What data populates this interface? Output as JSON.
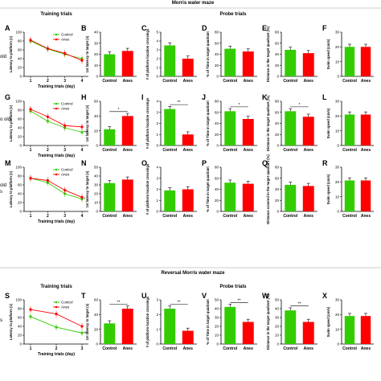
{
  "headers": {
    "top_title": "Morris water maze",
    "training_title": "Training trials",
    "probe_title": "Probe trials",
    "reversal_title": "Reversal Morris water maze",
    "reversal_training_title": "Training trials",
    "reversal_probe_title": "Probe trials"
  },
  "row_labels": [
    "old",
    "o old",
    "old\ns",
    "s"
  ],
  "colors": {
    "control": "#33cc00",
    "anes": "#ff0000",
    "axis": "#000000"
  },
  "chart_data": [
    {
      "id": "A",
      "type": "line",
      "row": 0,
      "col": 0,
      "xlabel": "Training trials (day)",
      "ylabel": "Latency to platform (s)",
      "x": [
        1,
        2,
        3,
        4
      ],
      "xticks": [
        "1",
        "2",
        "3",
        "4"
      ],
      "ylim": [
        0,
        100
      ],
      "yticks": [
        0,
        20,
        40,
        60,
        80,
        100
      ],
      "legend": [
        "Control",
        "Anes"
      ],
      "series": [
        {
          "name": "Control",
          "values": [
            80,
            62,
            50,
            40
          ]
        },
        {
          "name": "Anes",
          "values": [
            82,
            63,
            52,
            36
          ]
        }
      ],
      "sig": ""
    },
    {
      "id": "B",
      "type": "bar",
      "row": 0,
      "col": 1,
      "ylabel": "1st latency to target (s)",
      "categories": [
        "Control",
        "Anes"
      ],
      "values": [
        20,
        23
      ],
      "ylim": [
        0,
        40
      ],
      "yticks": [
        0,
        10,
        20,
        30,
        40
      ],
      "sig": ""
    },
    {
      "id": "C",
      "type": "bar",
      "row": 0,
      "col": 2,
      "ylabel": "# of platform location crossings",
      "categories": [
        "Control",
        "Anes"
      ],
      "values": [
        3.5,
        2.0
      ],
      "ylim": [
        0,
        5
      ],
      "yticks": [
        0,
        1,
        2,
        3,
        4,
        5
      ],
      "sig": ""
    },
    {
      "id": "D",
      "type": "bar",
      "row": 0,
      "col": 3,
      "ylabel": "% of Time in target quadrant",
      "categories": [
        "Control",
        "Anes"
      ],
      "values": [
        50,
        45
      ],
      "ylim": [
        0,
        80
      ],
      "yticks": [
        0,
        20,
        40,
        60,
        80
      ],
      "sig": ""
    },
    {
      "id": "E",
      "type": "bar",
      "row": 0,
      "col": 4,
      "ylabel": "Distance in the target quadrant (%)",
      "categories": [
        "Control",
        "Anes"
      ],
      "values": [
        48,
        42
      ],
      "ylim": [
        0,
        80
      ],
      "yticks": [
        0,
        20,
        40,
        60,
        80
      ],
      "sig": ""
    },
    {
      "id": "F",
      "type": "bar",
      "row": 0,
      "col": 5,
      "ylabel": "Swim speed (cm/s)",
      "categories": [
        "Control",
        "Anes"
      ],
      "values": [
        20,
        20
      ],
      "ylim": [
        0,
        30
      ],
      "yticks": [
        0,
        10,
        20,
        30
      ],
      "sig": ""
    },
    {
      "id": "G",
      "type": "line",
      "row": 1,
      "col": 0,
      "xlabel": "Training trials (day)",
      "ylabel": "Latency to platform (s)",
      "x": [
        1,
        2,
        3,
        4
      ],
      "xticks": [
        "1",
        "2",
        "3",
        "4"
      ],
      "ylim": [
        0,
        100
      ],
      "yticks": [
        0,
        20,
        40,
        60,
        80,
        100
      ],
      "legend": [
        "Control",
        "Anes"
      ],
      "series": [
        {
          "name": "Control",
          "values": [
            78,
            55,
            40,
            30
          ]
        },
        {
          "name": "Anes",
          "values": [
            82,
            65,
            45,
            42
          ]
        }
      ],
      "sig": "***"
    },
    {
      "id": "H",
      "type": "bar",
      "row": 1,
      "col": 1,
      "ylabel": "1st latency to target (s)",
      "categories": [
        "Control",
        "Anes"
      ],
      "values": [
        22,
        40
      ],
      "ylim": [
        0,
        60
      ],
      "yticks": [
        0,
        20,
        40,
        60
      ],
      "sig": "*"
    },
    {
      "id": "I",
      "type": "bar",
      "row": 1,
      "col": 2,
      "ylabel": "# of platform location crossings",
      "categories": [
        "Control",
        "Anes"
      ],
      "values": [
        3.3,
        1.0
      ],
      "ylim": [
        0,
        4
      ],
      "yticks": [
        0,
        1,
        2,
        3,
        4
      ],
      "sig": "**"
    },
    {
      "id": "J",
      "type": "bar",
      "row": 1,
      "col": 3,
      "ylabel": "% of Time in target quadrant",
      "categories": [
        "Control",
        "Anes"
      ],
      "values": [
        62,
        48
      ],
      "ylim": [
        0,
        80
      ],
      "yticks": [
        0,
        20,
        40,
        60,
        80
      ],
      "sig": "*"
    },
    {
      "id": "K",
      "type": "bar",
      "row": 1,
      "col": 4,
      "ylabel": "Distance in the target quadrant (%)",
      "categories": [
        "Control",
        "Anes"
      ],
      "values": [
        62,
        52
      ],
      "ylim": [
        0,
        80
      ],
      "yticks": [
        0,
        20,
        40,
        60,
        80
      ],
      "sig": "*"
    },
    {
      "id": "L",
      "type": "bar",
      "row": 1,
      "col": 5,
      "ylabel": "Swim speed (cm/s)",
      "categories": [
        "Control",
        "Anes"
      ],
      "values": [
        21,
        21
      ],
      "ylim": [
        0,
        30
      ],
      "yticks": [
        0,
        10,
        20,
        30
      ],
      "sig": ""
    },
    {
      "id": "M",
      "type": "line",
      "row": 2,
      "col": 0,
      "xlabel": "Training trials (day)",
      "ylabel": "Latency to platform (s)",
      "x": [
        1,
        2,
        3,
        4
      ],
      "xticks": [
        "1",
        "2",
        "3",
        "4"
      ],
      "ylim": [
        0,
        100
      ],
      "yticks": [
        0,
        20,
        40,
        60,
        80,
        100
      ],
      "legend": [
        "Control",
        "Anes"
      ],
      "series": [
        {
          "name": "Control",
          "values": [
            75,
            65,
            40,
            28
          ]
        },
        {
          "name": "Anes",
          "values": [
            75,
            70,
            48,
            32
          ]
        }
      ],
      "sig": "*"
    },
    {
      "id": "N",
      "type": "bar",
      "row": 2,
      "col": 1,
      "ylabel": "1st latency to target (s)",
      "categories": [
        "Control",
        "Anes"
      ],
      "values": [
        32,
        36
      ],
      "ylim": [
        0,
        50
      ],
      "yticks": [
        0,
        10,
        20,
        30,
        40,
        50
      ],
      "sig": ""
    },
    {
      "id": "O",
      "type": "bar",
      "row": 2,
      "col": 2,
      "ylabel": "# of platform location crossings",
      "categories": [
        "Control",
        "Anes"
      ],
      "values": [
        1.9,
        2.0
      ],
      "ylim": [
        0,
        4
      ],
      "yticks": [
        0,
        1,
        2,
        3,
        4
      ],
      "sig": ""
    },
    {
      "id": "P",
      "type": "bar",
      "row": 2,
      "col": 3,
      "ylabel": "% of Time in target quadrant",
      "categories": [
        "Control",
        "Anes"
      ],
      "values": [
        52,
        50
      ],
      "ylim": [
        0,
        80
      ],
      "yticks": [
        0,
        20,
        40,
        60,
        80
      ],
      "sig": ""
    },
    {
      "id": "Q",
      "type": "bar",
      "row": 2,
      "col": 4,
      "ylabel": "Distance covered in the target quadrant (%)",
      "categories": [
        "Control",
        "Anes"
      ],
      "values": [
        48,
        46
      ],
      "ylim": [
        0,
        80
      ],
      "yticks": [
        0,
        20,
        40,
        60,
        80
      ],
      "sig": ""
    },
    {
      "id": "R",
      "type": "bar",
      "row": 2,
      "col": 5,
      "ylabel": "Swim speed (cm/s)",
      "categories": [
        "Control",
        "Anes"
      ],
      "values": [
        21,
        21
      ],
      "ylim": [
        0,
        30
      ],
      "yticks": [
        0,
        10,
        20,
        30
      ],
      "sig": ""
    },
    {
      "id": "S",
      "type": "line",
      "row": 3,
      "col": 0,
      "xlabel": "Training trials (day)",
      "ylabel": "Latency to platform (s)",
      "x": [
        1,
        2,
        3
      ],
      "xticks": [
        "1",
        "2",
        "3"
      ],
      "ylim": [
        0,
        100
      ],
      "yticks": [
        0,
        20,
        40,
        60,
        80,
        100
      ],
      "legend": [
        "Control",
        "Anes"
      ],
      "series": [
        {
          "name": "Control",
          "values": [
            62,
            38,
            25
          ]
        },
        {
          "name": "Anes",
          "values": [
            78,
            68,
            40
          ]
        }
      ],
      "sig": "**"
    },
    {
      "id": "T",
      "type": "bar",
      "row": 3,
      "col": 1,
      "ylabel": "1st latency to target (s)",
      "categories": [
        "Control",
        "Anes"
      ],
      "values": [
        28,
        48
      ],
      "ylim": [
        0,
        60
      ],
      "yticks": [
        0,
        20,
        40,
        60
      ],
      "sig": "**"
    },
    {
      "id": "U",
      "type": "bar",
      "row": 3,
      "col": 2,
      "ylabel": "# of platform location crossings",
      "categories": [
        "Control",
        "Anes"
      ],
      "values": [
        2.4,
        0.9
      ],
      "ylim": [
        0,
        3
      ],
      "yticks": [
        0,
        1,
        2,
        3
      ],
      "sig": "**"
    },
    {
      "id": "V",
      "type": "bar",
      "row": 3,
      "col": 3,
      "ylabel": "% of Time in target quadrant",
      "categories": [
        "Control",
        "Anes"
      ],
      "values": [
        42,
        25
      ],
      "ylim": [
        0,
        50
      ],
      "yticks": [
        0,
        10,
        20,
        30,
        40,
        50
      ],
      "sig": "**"
    },
    {
      "id": "W",
      "type": "bar",
      "row": 3,
      "col": 4,
      "ylabel": "Distance in the target quadrant (%)",
      "categories": [
        "Control",
        "Anes"
      ],
      "values": [
        38,
        25
      ],
      "ylim": [
        0,
        50
      ],
      "yticks": [
        0,
        10,
        20,
        30,
        40,
        50
      ],
      "sig": "**"
    },
    {
      "id": "X",
      "type": "bar",
      "row": 3,
      "col": 5,
      "ylabel": "Swim speed (cm/s)",
      "categories": [
        "Control",
        "Anes"
      ],
      "values": [
        19,
        19
      ],
      "ylim": [
        0,
        30
      ],
      "yticks": [
        0,
        10,
        20,
        30
      ],
      "sig": ""
    }
  ]
}
